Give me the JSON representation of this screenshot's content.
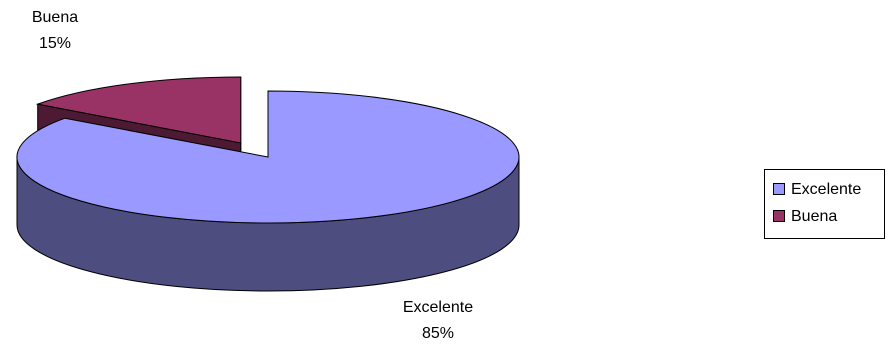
{
  "chart_data": {
    "type": "pie",
    "title": "",
    "slices": [
      {
        "label": "Excelente",
        "value": 85,
        "percent_label": "85%",
        "color": "#9999ff",
        "side_color": "#4d4d80"
      },
      {
        "label": "Buena",
        "value": 15,
        "percent_label": "15%",
        "color": "#993366",
        "side_color": "#4d1a33"
      }
    ],
    "three_d": true,
    "exploded_slice": "Buena",
    "legend": {
      "position": "right",
      "entries": [
        "Excelente",
        "Buena"
      ]
    }
  }
}
